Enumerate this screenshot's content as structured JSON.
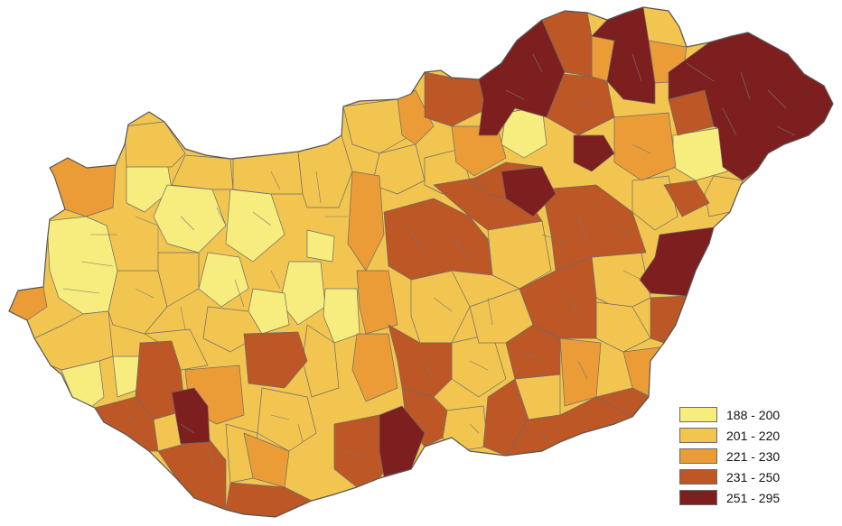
{
  "legend": {
    "classes": [
      {
        "label": "188 - 200",
        "color": "#f7ec7e"
      },
      {
        "label": "201 - 220",
        "color": "#f2c550"
      },
      {
        "label": "221 - 230",
        "color": "#eb9c37"
      },
      {
        "label": "231 - 250",
        "color": "#bd5726"
      },
      {
        "label": "251 - 295",
        "color": "#7e1f1f"
      }
    ]
  }
}
